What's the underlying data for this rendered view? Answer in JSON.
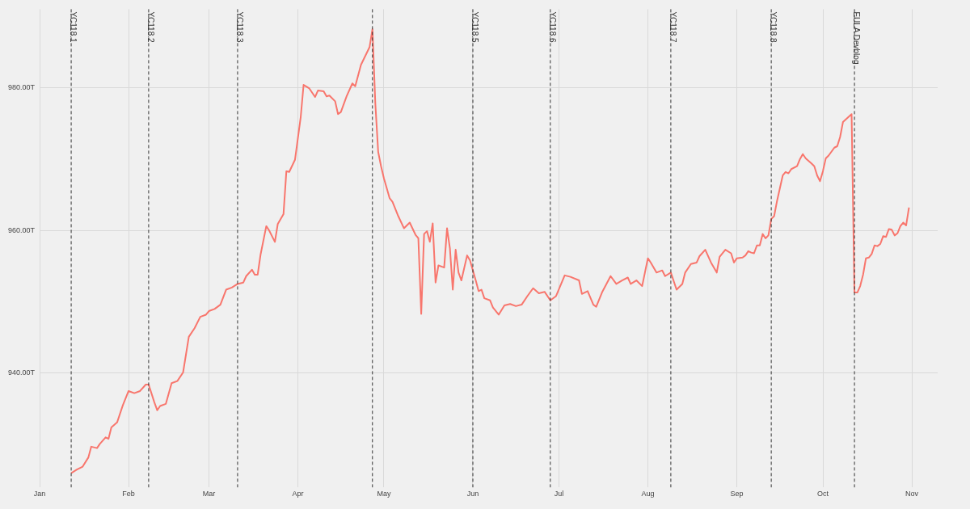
{
  "chart_data": {
    "type": "line",
    "x": [
      "--01-12",
      "--01-14",
      "--01-16",
      "--01-18",
      "--01-19",
      "--01-21",
      "--01-22",
      "--01-24",
      "--01-25",
      "--01-26",
      "--01-28",
      "--01-30",
      "--02-01",
      "--02-03",
      "--02-05",
      "--02-07",
      "--02-08",
      "--02-10",
      "--02-11",
      "--02-12",
      "--02-14",
      "--02-16",
      "--02-18",
      "--02-20",
      "--02-22",
      "--02-24",
      "--02-26",
      "--02-28",
      "--03-01",
      "--03-03",
      "--03-05",
      "--03-07",
      "--03-09",
      "--03-11",
      "--03-13",
      "--03-14",
      "--03-16",
      "--03-17",
      "--03-18",
      "--03-19",
      "--03-21",
      "--03-22",
      "--03-24",
      "--03-25",
      "--03-27",
      "--03-28",
      "--03-29",
      "--03-31",
      "--04-02",
      "--04-03",
      "--04-05",
      "--04-07",
      "--04-08",
      "--04-10",
      "--04-11",
      "--04-12",
      "--04-14",
      "--04-15",
      "--04-16",
      "--04-18",
      "--04-20",
      "--04-21",
      "--04-23",
      "--04-26",
      "--04-27",
      "--04-28",
      "--04-29",
      "--04-30",
      "--05-01",
      "--05-03",
      "--05-04",
      "--05-06",
      "--05-08",
      "--05-10",
      "--05-12",
      "--05-13",
      "--05-14",
      "--05-15",
      "--05-16",
      "--05-17",
      "--05-18",
      "--05-19",
      "--05-20",
      "--05-22",
      "--05-23",
      "--05-24",
      "--05-25",
      "--05-26",
      "--05-27",
      "--05-28",
      "--05-30",
      "--05-31",
      "--06-02",
      "--06-03",
      "--06-04",
      "--06-05",
      "--06-07",
      "--06-08",
      "--06-10",
      "--06-12",
      "--06-14",
      "--06-16",
      "--06-18",
      "--06-20",
      "--06-22",
      "--06-24",
      "--06-26",
      "--06-28",
      "--06-30",
      "--07-03",
      "--07-05",
      "--07-08",
      "--07-09",
      "--07-11",
      "--07-13",
      "--07-14",
      "--07-16",
      "--07-19",
      "--07-21",
      "--07-23",
      "--07-25",
      "--07-26",
      "--07-28",
      "--07-30",
      "--08-01",
      "--08-02",
      "--08-04",
      "--08-06",
      "--08-07",
      "--08-09",
      "--08-11",
      "--08-13",
      "--08-14",
      "--08-16",
      "--08-18",
      "--08-19",
      "--08-21",
      "--08-23",
      "--08-25",
      "--08-26",
      "--08-28",
      "--08-30",
      "--08-31",
      "--09-01",
      "--09-03",
      "--09-04",
      "--09-05",
      "--09-06",
      "--09-07",
      "--09-08",
      "--09-09",
      "--09-10",
      "--09-11",
      "--09-12",
      "--09-13",
      "--09-14",
      "--09-15",
      "--09-17",
      "--09-18",
      "--09-19",
      "--09-20",
      "--09-22",
      "--09-23",
      "--09-24",
      "--09-25",
      "--09-27",
      "--09-28",
      "--09-29",
      "--09-30",
      "--10-01",
      "--10-02",
      "--10-03",
      "--10-05",
      "--10-06",
      "--10-07",
      "--10-08",
      "--10-11",
      "--10-12",
      "--10-13",
      "--10-14",
      "--10-15",
      "--10-16",
      "--10-17",
      "--10-18",
      "--10-19",
      "--10-20",
      "--10-21",
      "--10-22",
      "--10-23",
      "--10-24",
      "--10-25",
      "--10-26",
      "--10-27",
      "--10-28",
      "--10-29",
      "--10-30",
      "--10-31"
    ],
    "series": [
      {
        "color": "#f8766d",
        "values": [
          926.0,
          926.5,
          926.9,
          928.2,
          929.7,
          929.5,
          930.1,
          931.0,
          930.8,
          932.4,
          933.1,
          935.5,
          937.5,
          937.2,
          937.5,
          938.4,
          938.4,
          935.9,
          934.8,
          935.4,
          935.7,
          938.6,
          938.9,
          940.1,
          945.1,
          946.3,
          947.9,
          948.2,
          948.7,
          949.0,
          949.6,
          951.7,
          952.0,
          952.5,
          952.7,
          953.6,
          954.5,
          953.8,
          953.8,
          956.6,
          960.6,
          960.0,
          958.4,
          960.9,
          962.3,
          968.3,
          968.2,
          969.9,
          975.9,
          980.4,
          979.9,
          978.7,
          979.6,
          979.5,
          978.8,
          978.9,
          978.1,
          976.3,
          976.6,
          978.8,
          980.6,
          980.2,
          983.2,
          985.7,
          988.2,
          977.8,
          971.0,
          969.0,
          967.3,
          964.5,
          964.0,
          962.0,
          960.3,
          961.1,
          959.4,
          958.9,
          948.3,
          959.5,
          959.9,
          958.4,
          961.0,
          952.7,
          955.1,
          954.8,
          960.3,
          957.5,
          951.7,
          957.3,
          954.1,
          953.0,
          956.5,
          955.8,
          953.0,
          951.5,
          951.7,
          950.5,
          950.2,
          949.2,
          948.2,
          949.5,
          949.7,
          949.4,
          949.6,
          950.8,
          951.9,
          951.2,
          951.4,
          950.2,
          950.8,
          953.7,
          953.5,
          953.0,
          951.1,
          951.5,
          949.6,
          949.3,
          951.3,
          953.6,
          952.5,
          953.0,
          953.4,
          952.5,
          953.0,
          952.2,
          956.1,
          955.5,
          954.1,
          954.4,
          953.6,
          954.1,
          951.7,
          952.5,
          954.1,
          955.3,
          955.5,
          956.4,
          957.3,
          955.5,
          954.1,
          956.3,
          957.3,
          956.8,
          955.5,
          956.1,
          956.2,
          956.5,
          957.1,
          956.9,
          956.8,
          957.9,
          957.9,
          959.5,
          958.9,
          959.3,
          961.6,
          962.0,
          964.1,
          967.7,
          968.2,
          968.0,
          968.6,
          969.0,
          970.0,
          970.7,
          970.1,
          969.4,
          969.0,
          967.7,
          966.9,
          968.3,
          970.1,
          970.5,
          971.6,
          971.8,
          973.1,
          975.2,
          976.3,
          951.3,
          951.3,
          952.2,
          953.8,
          956.1,
          956.2,
          956.7,
          957.9,
          957.8,
          958.1,
          959.2,
          959.1,
          960.2,
          960.1,
          959.3,
          959.6,
          960.6,
          961.1,
          960.7,
          963.2
        ]
      }
    ],
    "xlim": [
      "--01-01",
      "--11-10"
    ],
    "xticks": [
      {
        "value": "--01-01",
        "label": "Jan"
      },
      {
        "value": "--02-01",
        "label": "Feb"
      },
      {
        "value": "--03-01",
        "label": "Mar"
      },
      {
        "value": "--04-01",
        "label": "Apr"
      },
      {
        "value": "--05-01",
        "label": "May"
      },
      {
        "value": "--06-01",
        "label": "Jun"
      },
      {
        "value": "--07-01",
        "label": "Jul"
      },
      {
        "value": "--08-01",
        "label": "Aug"
      },
      {
        "value": "--09-01",
        "label": "Sep"
      },
      {
        "value": "--10-01",
        "label": "Oct"
      },
      {
        "value": "--11-01",
        "label": "Nov"
      }
    ],
    "ylim": [
      924,
      991
    ],
    "yticks": [
      {
        "value": 940,
        "label": "940.00T"
      },
      {
        "value": 960,
        "label": "960.00T"
      },
      {
        "value": 980,
        "label": "980.00T"
      }
    ],
    "ref_lines": [
      {
        "axis": "x",
        "value": "--01-12",
        "label": "YC118.1",
        "line_style": "dashed"
      },
      {
        "axis": "x",
        "value": "--02-08",
        "label": "YC118.2",
        "line_style": "dashed"
      },
      {
        "axis": "x",
        "value": "--03-11",
        "label": "YC118.3",
        "line_style": "dashed"
      },
      {
        "axis": "x",
        "value": "--04-27",
        "label": null,
        "line_style": "dashed"
      },
      {
        "axis": "x",
        "value": "--06-01",
        "label": "YC118.5",
        "line_style": "dashed"
      },
      {
        "axis": "x",
        "value": "--06-28",
        "label": "YC118.6",
        "line_style": "dashed"
      },
      {
        "axis": "x",
        "value": "--08-09",
        "label": "YC118.7",
        "line_style": "dashed"
      },
      {
        "axis": "x",
        "value": "--09-13",
        "label": "YC118.8",
        "line_style": "dashed"
      },
      {
        "axis": "x",
        "value": "--10-12",
        "label": "EULA Devblog",
        "line_style": "dashed"
      }
    ],
    "grid": true,
    "marker": "none",
    "line_style": "solid"
  }
}
